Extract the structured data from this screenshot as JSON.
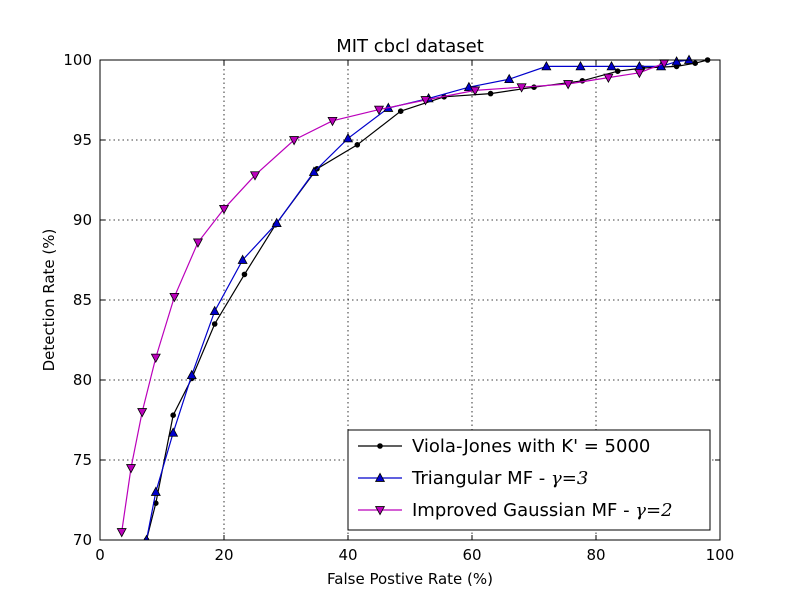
{
  "chart_data": {
    "type": "line",
    "title": "MIT cbcl dataset",
    "xlabel": "False Postive Rate (%)",
    "ylabel": "Detection Rate (%)",
    "xlim": [
      0,
      100
    ],
    "ylim": [
      70,
      100
    ],
    "xticks": [
      0,
      20,
      40,
      60,
      80,
      100
    ],
    "yticks": [
      70,
      75,
      80,
      85,
      90,
      95,
      100
    ],
    "grid": true,
    "legend_position": "lower-right",
    "series": [
      {
        "name": "Viola-Jones with K' = 5000",
        "legend_prefix": "Viola-Jones with K' = 5000",
        "legend_math": "",
        "color": "#000000",
        "marker": "dot",
        "x": [
          7.5,
          9,
          11.8,
          14.8,
          18.5,
          23.3,
          28.3,
          35,
          41.5,
          48.5,
          55.5,
          63,
          70,
          77.8,
          83.5,
          87.5,
          93,
          96,
          98
        ],
        "y": [
          70,
          72.3,
          77.8,
          80.1,
          83.5,
          86.6,
          89.7,
          93.2,
          94.7,
          96.8,
          97.7,
          97.9,
          98.3,
          98.7,
          99.3,
          99.5,
          99.6,
          99.8,
          100
        ]
      },
      {
        "name": "Triangular MF - γ=3",
        "legend_prefix": "Triangular MF - ",
        "legend_math": "γ=3",
        "color": "#0000cc",
        "marker": "triangle-up",
        "x": [
          7.5,
          9,
          11.8,
          14.8,
          18.5,
          23,
          28.5,
          34.5,
          40,
          46.5,
          53,
          59.5,
          66,
          72,
          77.5,
          82.5,
          87,
          90.5,
          93,
          95
        ],
        "y": [
          70,
          73,
          76.7,
          80.3,
          84.3,
          87.5,
          89.8,
          93,
          95.1,
          97,
          97.6,
          98.3,
          98.8,
          99.6,
          99.6,
          99.6,
          99.6,
          99.6,
          99.9,
          100
        ]
      },
      {
        "name": "Improved Gaussian MF - γ=2",
        "legend_prefix": "Improved Gaussian MF - ",
        "legend_math": "γ=2",
        "color": "#bb00bb",
        "marker": "triangle-down",
        "x": [
          3.5,
          5,
          6.8,
          9,
          12,
          15.8,
          20,
          25,
          31.3,
          37.5,
          45,
          52.5,
          60.5,
          68,
          75.5,
          82,
          87,
          91
        ],
        "y": [
          70.5,
          74.5,
          78,
          81.4,
          85.2,
          88.6,
          90.7,
          92.8,
          95,
          96.2,
          96.9,
          97.5,
          98.1,
          98.3,
          98.5,
          98.9,
          99.2,
          99.8
        ]
      }
    ]
  }
}
